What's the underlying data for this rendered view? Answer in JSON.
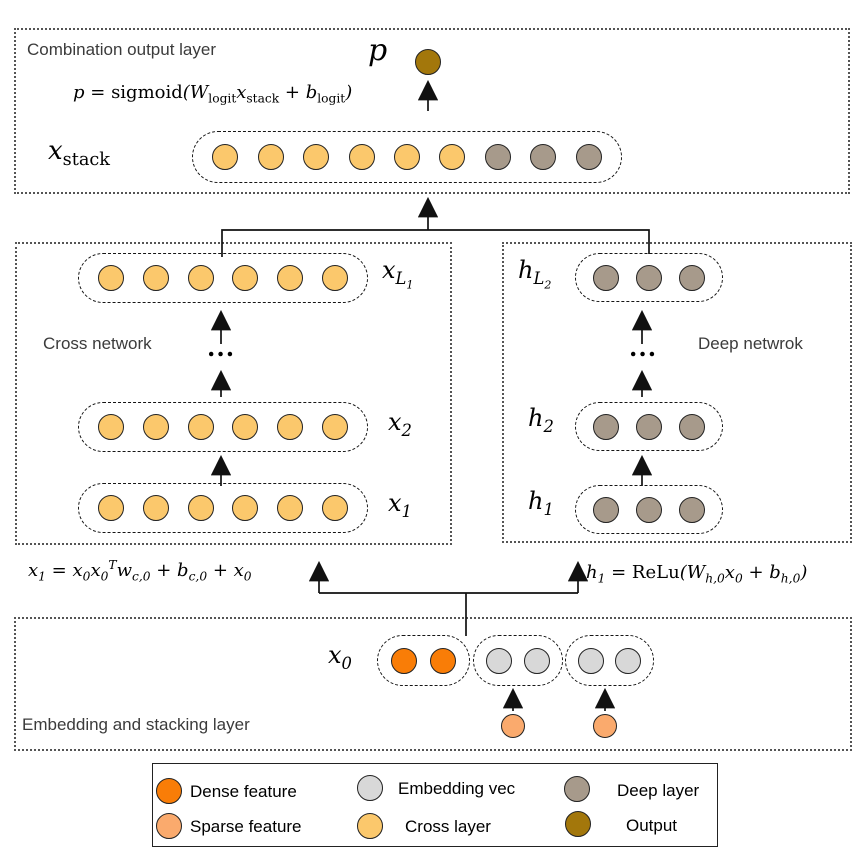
{
  "colors": {
    "dense": "#F97D07",
    "sparse": "#FAAA6D",
    "embedding": "#D8D8D8",
    "cross": "#FBC86C",
    "deep": "#A79A8B",
    "output": "#A3770B"
  },
  "sections": {
    "combination": {
      "label": "Combination output layer"
    },
    "cross": {
      "label": "Cross network"
    },
    "deep": {
      "label": "Deep netwrok"
    },
    "embedding": {
      "label": "Embedding and stacking layer"
    }
  },
  "formulas": {
    "output": "p = \\r{sigmoid}(W_{\\r{logit}}x_{\\r{stack}} + b_{\\r{logit}})",
    "cross": "x_{1} = x_{0}x_{0}^{T}w_{c,0} + b_{c,0} + x_{0}",
    "deep": "h_{1} = \\r{ReLu}(W_{h,0}x_{0} + b_{h,0})"
  },
  "dots": "...",
  "nodes": {
    "p": {
      "label": "p",
      "color": "output"
    },
    "x_stack": {
      "label": "x_{\\r{stack}}",
      "circles": [
        "cross",
        "cross",
        "cross",
        "cross",
        "cross",
        "cross",
        "deep",
        "deep",
        "deep"
      ]
    },
    "x_L1": {
      "label": "x_{L_{1}}",
      "circles": [
        "cross",
        "cross",
        "cross",
        "cross",
        "cross",
        "cross"
      ]
    },
    "x_2": {
      "label": "x_{2}",
      "circles": [
        "cross",
        "cross",
        "cross",
        "cross",
        "cross",
        "cross"
      ]
    },
    "x_1": {
      "label": "x_{1}",
      "circles": [
        "cross",
        "cross",
        "cross",
        "cross",
        "cross",
        "cross"
      ]
    },
    "h_L2": {
      "label": "h_{L_{2}}",
      "circles": [
        "deep",
        "deep",
        "deep"
      ]
    },
    "h_2": {
      "label": "h_{2}",
      "circles": [
        "deep",
        "deep",
        "deep"
      ]
    },
    "h_1": {
      "label": "h_{1}",
      "circles": [
        "deep",
        "deep",
        "deep"
      ]
    },
    "x_0": {
      "label": "x_{0}"
    },
    "x0_dense": {
      "circles": [
        "dense",
        "dense"
      ]
    },
    "x0_emb1": {
      "circles": [
        "embedding",
        "embedding"
      ]
    },
    "x0_emb2": {
      "circles": [
        "embedding",
        "embedding"
      ]
    },
    "sparse1": {
      "color": "sparse"
    },
    "sparse2": {
      "color": "sparse"
    }
  },
  "legend": {
    "items": [
      {
        "label": "Dense feature",
        "color": "dense"
      },
      {
        "label": "Sparse feature",
        "color": "sparse"
      },
      {
        "label": "Embedding vec",
        "color": "embedding"
      },
      {
        "label": "Cross layer",
        "color": "cross"
      },
      {
        "label": "Deep layer",
        "color": "deep"
      },
      {
        "label": "Output",
        "color": "output"
      }
    ]
  }
}
